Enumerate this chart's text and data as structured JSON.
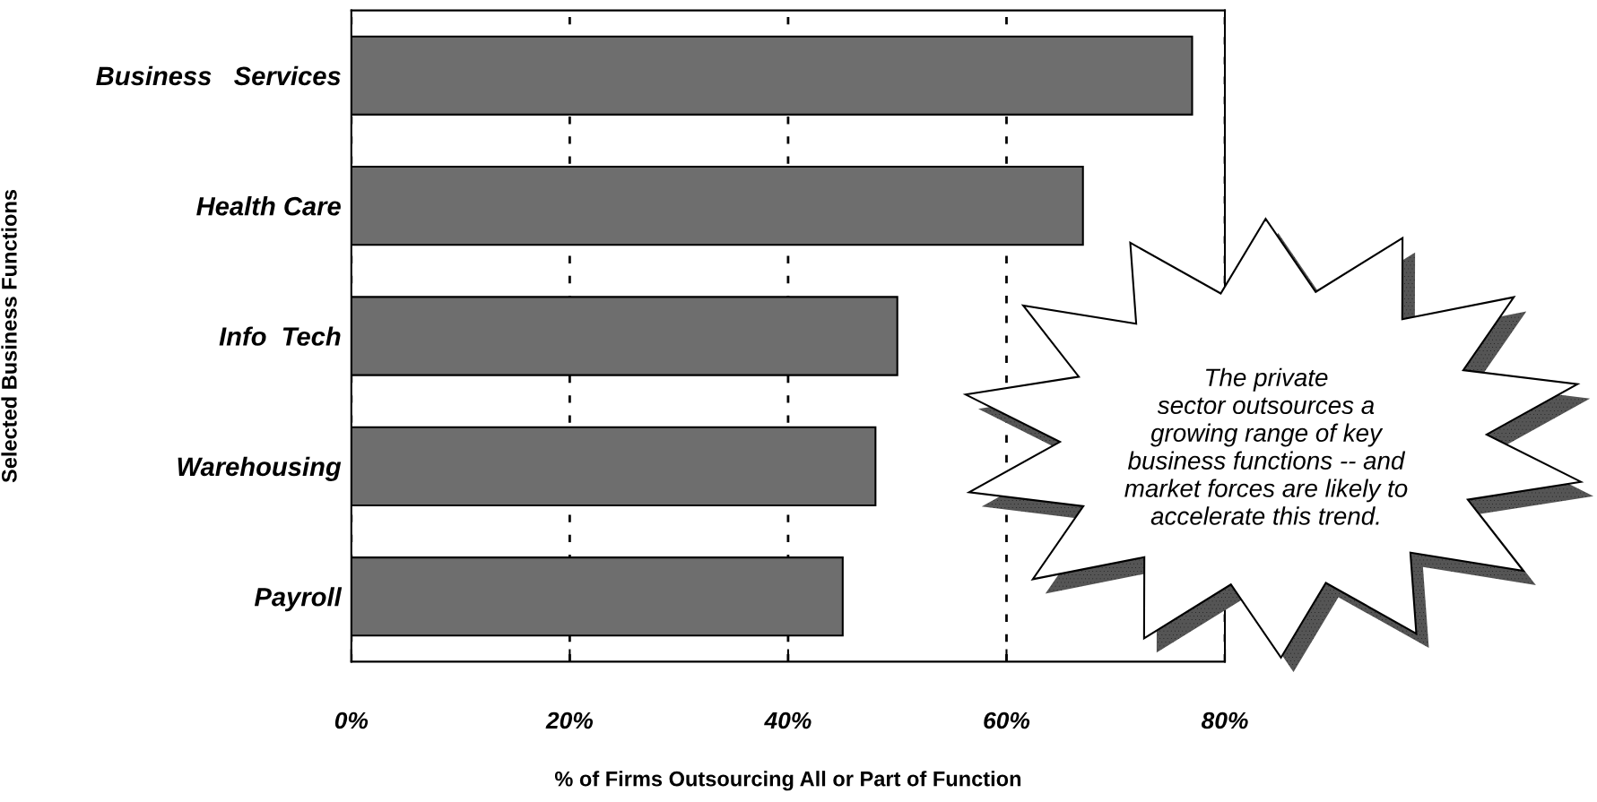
{
  "chart_data": {
    "type": "bar",
    "orientation": "horizontal",
    "categories": [
      "Business   Services",
      "Health Care",
      "Info  Tech",
      "Warehousing",
      "Payroll"
    ],
    "values": [
      77,
      67,
      50,
      48,
      45
    ],
    "color": "#6e6e6e",
    "xlim": [
      0,
      80
    ],
    "xticks": [
      {
        "value": 0,
        "label": "0%"
      },
      {
        "value": 20,
        "label": "20%"
      },
      {
        "value": 40,
        "label": "40%"
      },
      {
        "value": 60,
        "label": "60%"
      },
      {
        "value": 80,
        "label": "80%"
      }
    ],
    "xlabel": "% of Firms Outsourcing All or Part of Function",
    "ylabel": "Selected Business Functions",
    "grid": "x",
    "annotations": [
      "The private\nsector outsources a\ngrowing range of key\nbusiness functions -- and\nmarket forces are likely to\naccelerate this trend."
    ]
  }
}
